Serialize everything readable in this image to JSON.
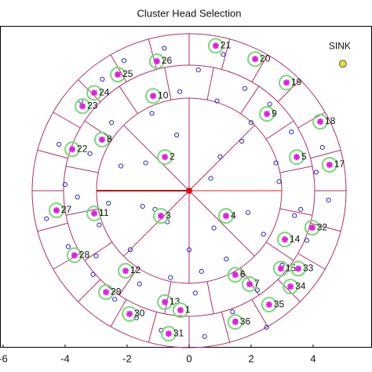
{
  "chart_data": {
    "type": "scatter",
    "title": "Cluster Head Selection",
    "xlim": [
      -6.1,
      5.9
    ],
    "ylim": [
      -5.06,
      5.32
    ],
    "xticks": [
      -6,
      -4,
      -2,
      0,
      2,
      4
    ],
    "node_color": "#2a2ab8",
    "head_color": "#e020e0",
    "ring_color": "#b0306a",
    "nodes": {
      "x": [
        -4.2,
        -3.5,
        -2.8,
        -2.1,
        -1.5,
        -0.8,
        0.3,
        1.1,
        1.8,
        2.6,
        3.3,
        4.1,
        -4.6,
        -3.9,
        -3.1,
        -2.4,
        -1.7,
        -0.9,
        0.5,
        1.4,
        2.2,
        3.0,
        3.8,
        4.5,
        -4.0,
        -3.2,
        -2.5,
        -1.2,
        -0.4,
        0.9,
        1.7,
        2.8,
        3.6,
        4.3,
        -3.6,
        -2.9,
        -1.9,
        -0.6,
        0.2,
        1.2,
        2.4,
        3.4,
        -2.2,
        -1.1,
        0.7,
        1.9,
        2.9,
        -3.0,
        -1.6,
        0.0,
        1.5,
        2.5,
        -0.3,
        0.8,
        -1.4,
        1.0,
        -2.6,
        2.0,
        -0.7,
        0.4
      ],
      "y": [
        1.5,
        2.9,
        3.6,
        4.2,
        -0.5,
        4.6,
        3.9,
        4.4,
        3.3,
        2.8,
        1.9,
        0.6,
        -0.9,
        -1.8,
        -2.7,
        -3.5,
        -4.1,
        -4.5,
        -4.7,
        -3.9,
        -3.2,
        -2.4,
        -1.6,
        -0.3,
        0.2,
        1.2,
        2.2,
        2.5,
        1.8,
        2.9,
        1.6,
        0.9,
        -0.6,
        1.4,
        -0.2,
        -1.1,
        -1.9,
        -2.8,
        -3.3,
        -2.2,
        -1.4,
        -0.8,
        0.8,
        -0.6,
        0.4,
        -0.7,
        0.3,
        -2.1,
        -3.0,
        -1.9,
        -4.2,
        -4.4,
        3.2,
        -1.2,
        0.9,
        1.1,
        -0.4,
        2.2,
        -1.0,
        -2.6
      ]
    },
    "cluster_heads": {
      "labels": [
        "21",
        "20",
        "26",
        "25",
        "19",
        "24",
        "10",
        "23",
        "18",
        "9",
        "8",
        "22",
        "2",
        "5",
        "17",
        "27",
        "11",
        "3",
        "4",
        "32",
        "14",
        "28",
        "12",
        "15",
        "33",
        "6",
        "34",
        "7",
        "35",
        "29",
        "13",
        "30",
        "36",
        "31",
        "1"
      ],
      "x": [
        0.86,
        2.13,
        -1.04,
        -2.3,
        3.14,
        -3.06,
        -1.16,
        -3.44,
        4.23,
        2.51,
        -2.81,
        -3.77,
        -0.78,
        3.47,
        4.53,
        -4.28,
        -3.06,
        -0.91,
        1.19,
        3.97,
        3.09,
        -3.7,
        -2.05,
        2.96,
        3.52,
        1.49,
        3.27,
        1.95,
        2.58,
        -2.68,
        -0.78,
        -1.92,
        1.49,
        -0.66,
        -0.28
      ],
      "y": [
        4.68,
        4.25,
        4.18,
        3.75,
        3.49,
        3.16,
        3.06,
        2.73,
        2.23,
        2.48,
        1.65,
        1.34,
        1.09,
        1.09,
        0.84,
        -0.63,
        -0.73,
        -0.81,
        -0.81,
        -1.19,
        -1.57,
        -2.08,
        -2.58,
        -2.51,
        -2.51,
        -2.71,
        -3.09,
        -3.01,
        -3.67,
        -3.27,
        -3.59,
        -3.97,
        -4.23,
        -4.61,
        -3.85
      ]
    },
    "sink": {
      "label": "SINK",
      "x": 4.96,
      "y": 4.1
    }
  }
}
